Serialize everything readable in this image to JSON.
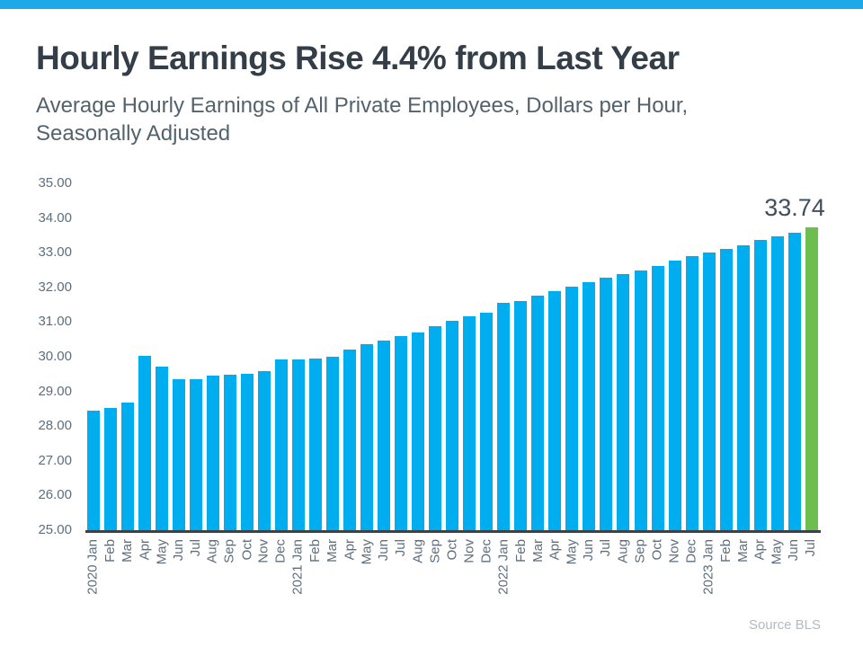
{
  "page": {
    "title": "Hourly Earnings Rise 4.4% from Last Year",
    "subtitle": "Average Hourly Earnings of All Private Employees, Dollars per Hour, Seasonally Adjusted",
    "source": "Source BLS"
  },
  "colors": {
    "accent_bar": "#1BA9EA",
    "bar": "#00AEEF",
    "bar_highlight": "#6CBE4F",
    "axis_line": "#3B4249",
    "title_text": "#333E48",
    "subtitle_text": "#53626D",
    "tick_text": "#5E6E7C",
    "value_label_text": "#414F5C",
    "source_text": "#B2BBC1"
  },
  "chart_data": {
    "type": "bar",
    "title": "Hourly Earnings Rise 4.4% from Last Year",
    "subtitle": "Average Hourly Earnings of All Private Employees, Dollars per Hour, Seasonally Adjusted",
    "xlabel": "",
    "ylabel": "Dollars per Hour",
    "ylim": [
      25,
      35
    ],
    "ytick_step": 1,
    "ytick_labels": [
      "35.00",
      "34.00",
      "33.00",
      "32.00",
      "31.00",
      "30.00",
      "29.00",
      "28.00",
      "27.00",
      "26.00",
      "25.00"
    ],
    "grid": false,
    "legend": false,
    "highlight_index": 42,
    "annotation": {
      "index": 42,
      "text": "33.74"
    },
    "categories": [
      "2020 Jan",
      "Feb",
      "Mar",
      "Apr",
      "May",
      "Jun",
      "Jul",
      "Aug",
      "Sep",
      "Oct",
      "Nov",
      "Dec",
      "2021 Jan",
      "Feb",
      "Mar",
      "Apr",
      "May",
      "Jun",
      "Jul",
      "Aug",
      "Sep",
      "Oct",
      "Nov",
      "Dec",
      "2022 Jan",
      "Feb",
      "Mar",
      "Apr",
      "May",
      "Jun",
      "Jul",
      "Aug",
      "Sep",
      "Oct",
      "Nov",
      "Dec",
      "2023 Jan",
      "Feb",
      "Mar",
      "Apr",
      "May",
      "Jun",
      "Jul"
    ],
    "values": [
      28.44,
      28.52,
      28.69,
      30.03,
      29.72,
      29.35,
      29.34,
      29.46,
      29.49,
      29.51,
      29.59,
      29.91,
      29.91,
      29.96,
      29.99,
      30.2,
      30.36,
      30.47,
      30.59,
      30.71,
      30.88,
      31.04,
      31.17,
      31.28,
      31.56,
      31.6,
      31.77,
      31.89,
      32.02,
      32.14,
      32.28,
      32.38,
      32.48,
      32.61,
      32.78,
      32.89,
      33.01,
      33.1,
      33.2,
      33.36,
      33.46,
      33.58,
      33.74
    ]
  }
}
